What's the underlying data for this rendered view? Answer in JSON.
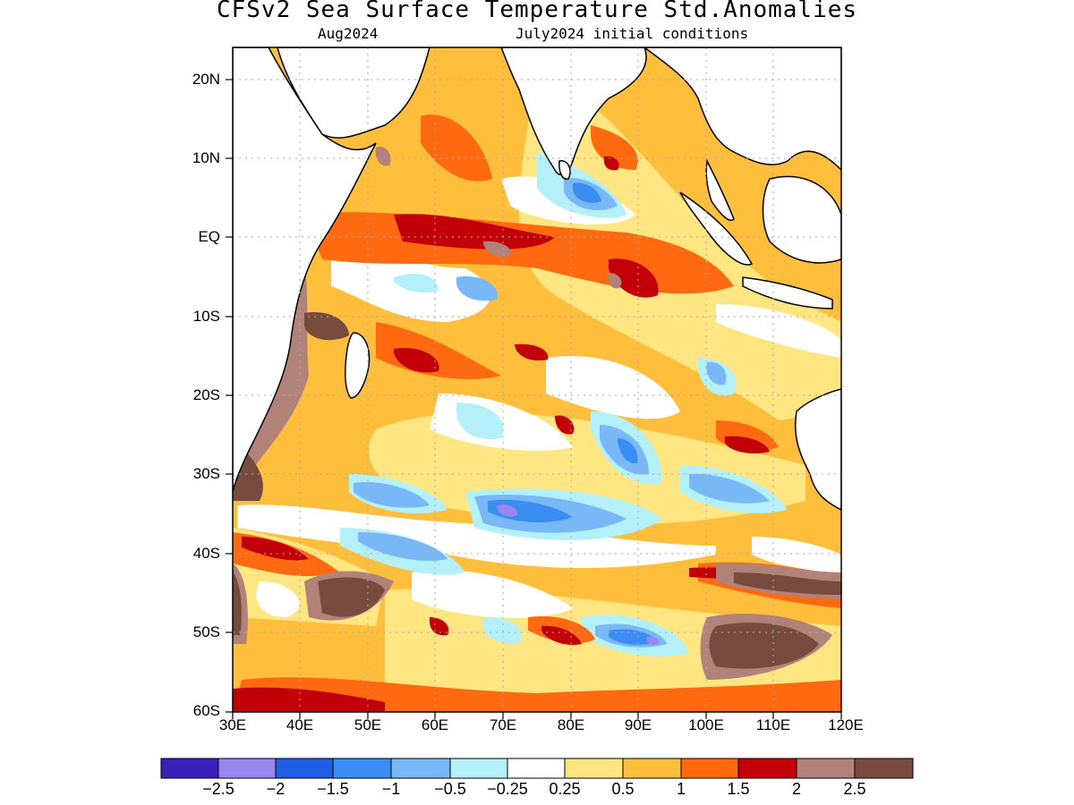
{
  "header": {
    "title": "CFSv2 Sea Surface Temperature Std.Anomalies",
    "valid_month": "Aug2024",
    "init_label": "July2024 initial conditions"
  },
  "map": {
    "lat_labels": [
      "20N",
      "10N",
      "EQ",
      "10S",
      "20S",
      "30S",
      "40S",
      "50S",
      "60S"
    ],
    "lon_labels": [
      "30E",
      "40E",
      "50E",
      "60E",
      "70E",
      "80E",
      "90E",
      "100E",
      "110E",
      "120E"
    ],
    "extent": {
      "lon_min": 30,
      "lon_max": 120,
      "lat_min": -60,
      "lat_max": 24
    }
  },
  "colorbar": {
    "colors": [
      "#3a1fb8",
      "#9b86f0",
      "#1f5ee0",
      "#3a8ef2",
      "#78b8f6",
      "#b4f0fa",
      "#ffffff",
      "#ffe683",
      "#ffbe3c",
      "#ff6a10",
      "#c20008",
      "#b08278",
      "#774c3e"
    ],
    "labels": [
      "−2.5",
      "−2",
      "−1.5",
      "−1",
      "−0.5",
      "−0.25",
      "0.25",
      "0.5",
      "1",
      "1.5",
      "2",
      "2.5"
    ]
  }
}
